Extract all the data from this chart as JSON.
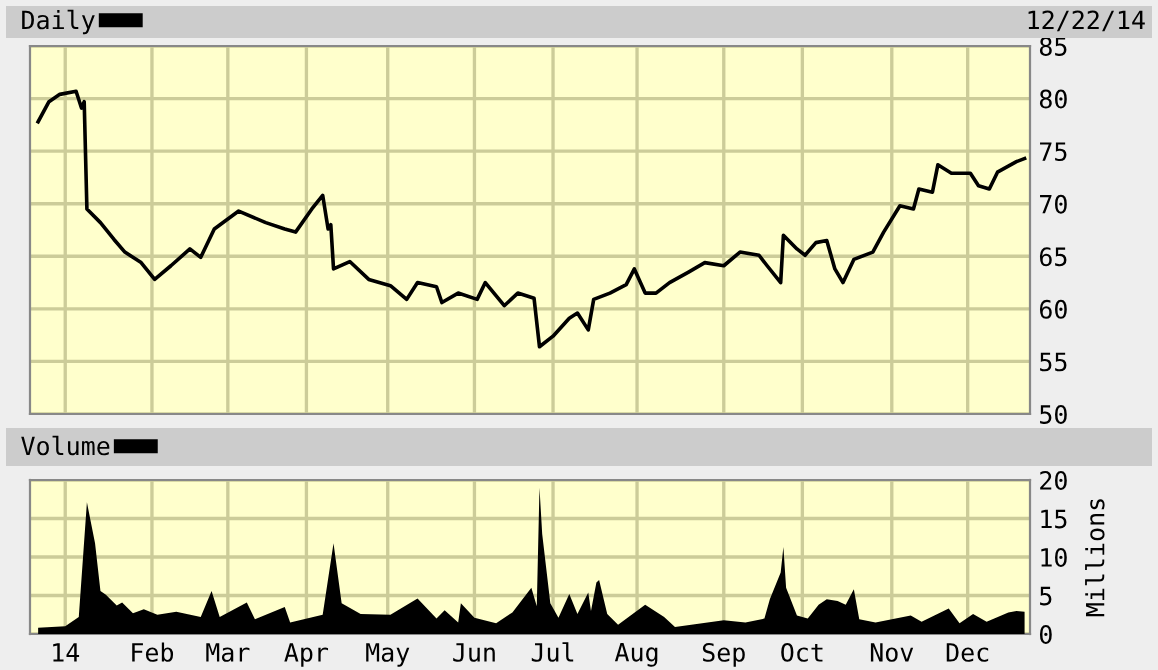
{
  "chart_data": [
    {
      "type": "line",
      "annotations": [
        "12/22/14"
      ],
      "legend": "top left",
      "grid": true,
      "tick_labels": "y",
      "xlim": [
        "2013-12-20",
        "2014-12-24"
      ],
      "xticks": [
        {
          "value": "2014-01-02",
          "label": null
        },
        {
          "value": "2014-02-03",
          "label": null
        },
        {
          "value": "2014-03-03",
          "label": null
        },
        {
          "value": "2014-04-01",
          "label": null
        },
        {
          "value": "2014-05-01",
          "label": null
        },
        {
          "value": "2014-06-02",
          "label": null
        },
        {
          "value": "2014-07-01",
          "label": null
        },
        {
          "value": "2014-08-01",
          "label": null
        },
        {
          "value": "2014-09-02",
          "label": null
        },
        {
          "value": "2014-10-01",
          "label": null
        },
        {
          "value": "2014-11-03",
          "label": null
        },
        {
          "value": "2014-12-01",
          "label": null
        }
      ],
      "ylim": [
        50,
        85
      ],
      "yticks": [
        50,
        55,
        60,
        65,
        70,
        75,
        80,
        85
      ],
      "series": [
        {
          "name": "Daily",
          "color": "#000000",
          "x": [
            "2013-12-23",
            "2013-12-27",
            "2013-12-31",
            "2014-01-06",
            "2014-01-08",
            "2014-01-09",
            "2014-01-10",
            "2014-01-15",
            "2014-01-20",
            "2014-01-24",
            "2014-01-30",
            "2014-02-04",
            "2014-02-10",
            "2014-02-17",
            "2014-02-21",
            "2014-02-26",
            "2014-03-07",
            "2014-03-17",
            "2014-03-24",
            "2014-03-28",
            "2014-04-03",
            "2014-04-07",
            "2014-04-09",
            "2014-04-10",
            "2014-04-11",
            "2014-04-17",
            "2014-04-24",
            "2014-05-02",
            "2014-05-08",
            "2014-05-12",
            "2014-05-19",
            "2014-05-21",
            "2014-05-27",
            "2014-06-03",
            "2014-06-06",
            "2014-06-13",
            "2014-06-18",
            "2014-06-24",
            "2014-06-26",
            "2014-07-01",
            "2014-07-07",
            "2014-07-10",
            "2014-07-14",
            "2014-07-16",
            "2014-07-22",
            "2014-07-28",
            "2014-07-31",
            "2014-08-04",
            "2014-08-08",
            "2014-08-13",
            "2014-08-20",
            "2014-08-26",
            "2014-09-02",
            "2014-09-08",
            "2014-09-15",
            "2014-09-18",
            "2014-09-23",
            "2014-09-24",
            "2014-09-29",
            "2014-10-02",
            "2014-10-06",
            "2014-10-10",
            "2014-10-13",
            "2014-10-16",
            "2014-10-20",
            "2014-10-27",
            "2014-10-31",
            "2014-11-06",
            "2014-11-11",
            "2014-11-13",
            "2014-11-18",
            "2014-11-20",
            "2014-11-25",
            "2014-12-02",
            "2014-12-05",
            "2014-12-09",
            "2014-12-12",
            "2014-12-19",
            "2014-12-22"
          ],
          "values": [
            77.8,
            79.7,
            80.4,
            80.7,
            79.1,
            79.7,
            69.5,
            68.2,
            66.6,
            65.4,
            64.4,
            62.8,
            64.1,
            65.7,
            64.9,
            67.6,
            69.3,
            68.2,
            67.6,
            67.3,
            69.5,
            70.8,
            67.6,
            68.0,
            63.8,
            64.5,
            62.8,
            62.2,
            60.9,
            62.5,
            62.1,
            60.6,
            61.5,
            60.9,
            62.5,
            60.3,
            61.5,
            61.0,
            56.4,
            57.4,
            59.1,
            59.6,
            58.0,
            60.9,
            61.5,
            62.3,
            63.8,
            61.5,
            61.5,
            62.5,
            63.5,
            64.4,
            64.1,
            65.4,
            65.1,
            64.1,
            62.5,
            67.0,
            65.7,
            65.1,
            66.3,
            66.5,
            63.8,
            62.5,
            64.7,
            65.4,
            67.3,
            69.8,
            69.5,
            71.4,
            71.1,
            73.7,
            72.9,
            72.9,
            71.7,
            71.4,
            73.0,
            74.0,
            74.3
          ]
        }
      ]
    },
    {
      "type": "area",
      "legend": "top left",
      "grid": true,
      "ylabel": "Millions",
      "xlim": [
        "2013-12-20",
        "2014-12-24"
      ],
      "xticks": [
        {
          "value": "2014-01-02",
          "label": "14"
        },
        {
          "value": "2014-02-03",
          "label": "Feb"
        },
        {
          "value": "2014-03-03",
          "label": "Mar"
        },
        {
          "value": "2014-04-01",
          "label": "Apr"
        },
        {
          "value": "2014-05-01",
          "label": "May"
        },
        {
          "value": "2014-06-02",
          "label": "Jun"
        },
        {
          "value": "2014-07-01",
          "label": "Jul"
        },
        {
          "value": "2014-08-01",
          "label": "Aug"
        },
        {
          "value": "2014-09-02",
          "label": "Sep"
        },
        {
          "value": "2014-10-01",
          "label": "Oct"
        },
        {
          "value": "2014-11-03",
          "label": "Nov"
        },
        {
          "value": "2014-12-01",
          "label": "Dec"
        }
      ],
      "ylim": [
        0,
        20
      ],
      "yticks": [
        0,
        5,
        10,
        15,
        20
      ],
      "series": [
        {
          "name": "Volume",
          "color": "#000000",
          "x": [
            "2013-12-23",
            "2014-01-02",
            "2014-01-07",
            "2014-01-10",
            "2014-01-13",
            "2014-01-15",
            "2014-01-17",
            "2014-01-21",
            "2014-01-23",
            "2014-01-27",
            "2014-01-31",
            "2014-02-05",
            "2014-02-12",
            "2014-02-21",
            "2014-02-25",
            "2014-02-28",
            "2014-03-10",
            "2014-03-13",
            "2014-03-24",
            "2014-03-26",
            "2014-04-07",
            "2014-04-11",
            "2014-04-14",
            "2014-04-21",
            "2014-05-02",
            "2014-05-12",
            "2014-05-19",
            "2014-05-22",
            "2014-05-27",
            "2014-05-28",
            "2014-06-02",
            "2014-06-10",
            "2014-06-16",
            "2014-06-23",
            "2014-06-25",
            "2014-06-26",
            "2014-06-27",
            "2014-06-30",
            "2014-07-03",
            "2014-07-07",
            "2014-07-10",
            "2014-07-14",
            "2014-07-15",
            "2014-07-17",
            "2014-07-18",
            "2014-07-21",
            "2014-07-25",
            "2014-08-04",
            "2014-08-11",
            "2014-08-15",
            "2014-09-02",
            "2014-09-10",
            "2014-09-17",
            "2014-09-19",
            "2014-09-23",
            "2014-09-24",
            "2014-09-25",
            "2014-09-29",
            "2014-10-03",
            "2014-10-07",
            "2014-10-10",
            "2014-10-14",
            "2014-10-17",
            "2014-10-20",
            "2014-10-22",
            "2014-10-28",
            "2014-11-10",
            "2014-11-14",
            "2014-11-24",
            "2014-11-28",
            "2014-12-03",
            "2014-12-08",
            "2014-12-16",
            "2014-12-19",
            "2014-12-22"
          ],
          "values": [
            0.8,
            1.0,
            2.2,
            17.1,
            11.8,
            5.6,
            5.1,
            3.7,
            4.1,
            2.7,
            3.2,
            2.5,
            2.9,
            2.2,
            5.6,
            2.2,
            4.1,
            1.9,
            3.5,
            1.5,
            2.5,
            11.8,
            4.0,
            2.6,
            2.5,
            4.6,
            2.0,
            3.1,
            1.5,
            4.0,
            2.1,
            1.4,
            2.8,
            6.0,
            3.6,
            19.0,
            13.0,
            4.0,
            2.1,
            5.2,
            2.6,
            5.4,
            3.0,
            6.7,
            7.0,
            2.6,
            1.2,
            3.8,
            2.2,
            0.9,
            1.8,
            1.5,
            2.0,
            4.5,
            8.0,
            11.3,
            6.0,
            2.4,
            2.0,
            3.8,
            4.5,
            4.3,
            3.8,
            5.8,
            1.9,
            1.5,
            2.4,
            1.6,
            3.3,
            1.4,
            2.6,
            1.6,
            2.8,
            3.0,
            2.9
          ]
        }
      ]
    }
  ]
}
